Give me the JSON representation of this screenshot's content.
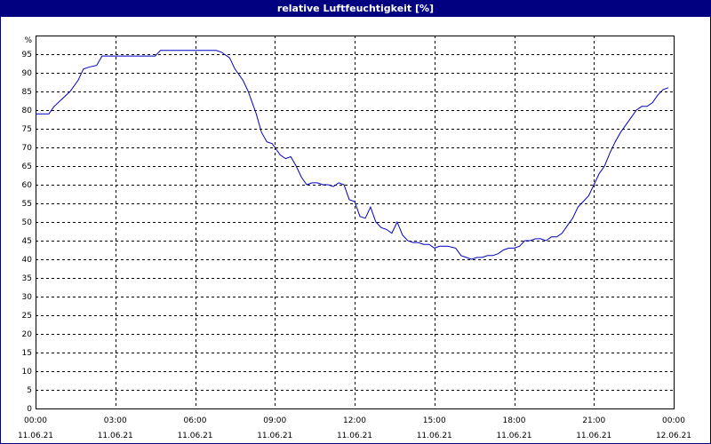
{
  "chart_data": {
    "type": "line",
    "title": "relative Luftfeuchtigkeit [%]",
    "ylabel": "%",
    "xlabel": "",
    "ylim": [
      0,
      100
    ],
    "xlim_hours": [
      0,
      24
    ],
    "grid": true,
    "y_ticks": [
      0,
      5,
      10,
      15,
      20,
      25,
      30,
      35,
      40,
      45,
      50,
      55,
      60,
      65,
      70,
      75,
      80,
      85,
      90,
      95
    ],
    "x_ticks": [
      {
        "hour": 0,
        "time": "00:00",
        "date": "11.06.21"
      },
      {
        "hour": 3,
        "time": "03:00",
        "date": "11.06.21"
      },
      {
        "hour": 6,
        "time": "06:00",
        "date": "11.06.21"
      },
      {
        "hour": 9,
        "time": "09:00",
        "date": "11.06.21"
      },
      {
        "hour": 12,
        "time": "12:00",
        "date": "11.06.21"
      },
      {
        "hour": 15,
        "time": "15:00",
        "date": "11.06.21"
      },
      {
        "hour": 18,
        "time": "18:00",
        "date": "11.06.21"
      },
      {
        "hour": 21,
        "time": "21:00",
        "date": "11.06.21"
      },
      {
        "hour": 24,
        "time": "00:00",
        "date": "12.06.21"
      }
    ],
    "series": [
      {
        "color": "#0000c0",
        "x": [
          0,
          0.5,
          0.7,
          1.0,
          1.3,
          1.6,
          1.8,
          2.0,
          2.3,
          2.5,
          2.7,
          3.0,
          3.5,
          4.0,
          4.5,
          4.7,
          5.0,
          5.5,
          6.0,
          6.5,
          6.8,
          7.0,
          7.3,
          7.5,
          7.8,
          8.0,
          8.3,
          8.5,
          8.7,
          8.9,
          9.0,
          9.2,
          9.4,
          9.6,
          9.8,
          10.0,
          10.2,
          10.4,
          10.6,
          10.8,
          11.0,
          11.2,
          11.4,
          11.6,
          11.8,
          12.0,
          12.2,
          12.4,
          12.6,
          12.8,
          13.0,
          13.2,
          13.4,
          13.6,
          13.8,
          14.0,
          14.2,
          14.4,
          14.6,
          14.8,
          15.0,
          15.2,
          15.5,
          15.8,
          16.0,
          16.2,
          16.4,
          16.6,
          16.8,
          17.0,
          17.2,
          17.4,
          17.6,
          17.8,
          18.0,
          18.2,
          18.4,
          18.6,
          18.8,
          19.0,
          19.2,
          19.4,
          19.6,
          19.8,
          20.0,
          20.2,
          20.4,
          20.6,
          20.8,
          21.0,
          21.2,
          21.4,
          21.6,
          21.8,
          22.0,
          22.2,
          22.4,
          22.6,
          22.8,
          23.0,
          23.2,
          23.4,
          23.6,
          23.8
        ],
        "y": [
          79,
          79,
          81,
          83,
          85,
          88,
          91,
          91.5,
          92,
          94.5,
          94.5,
          94.5,
          94.5,
          94.5,
          94.5,
          96,
          96,
          96,
          96,
          96,
          96,
          95.5,
          94,
          91,
          88,
          85,
          79,
          74,
          71.5,
          71,
          70,
          68,
          67,
          67.5,
          65,
          62,
          60,
          60.5,
          60.5,
          60,
          60,
          59.5,
          60.5,
          60,
          56,
          55.5,
          51.5,
          51,
          54,
          50,
          48.5,
          48,
          47,
          50,
          46.5,
          45,
          44.5,
          44.5,
          44,
          44,
          43,
          43.5,
          43.5,
          43,
          41,
          40.5,
          40,
          40.5,
          40.5,
          41,
          41,
          41.5,
          42.5,
          43,
          43,
          43.5,
          45,
          45,
          45.5,
          45.5,
          45,
          46,
          46,
          47,
          49,
          51,
          54,
          55.5,
          57,
          60,
          63,
          65,
          68.5,
          71.5,
          74,
          76,
          78,
          80,
          81,
          81,
          82,
          84,
          85.5,
          86
        ]
      }
    ]
  }
}
